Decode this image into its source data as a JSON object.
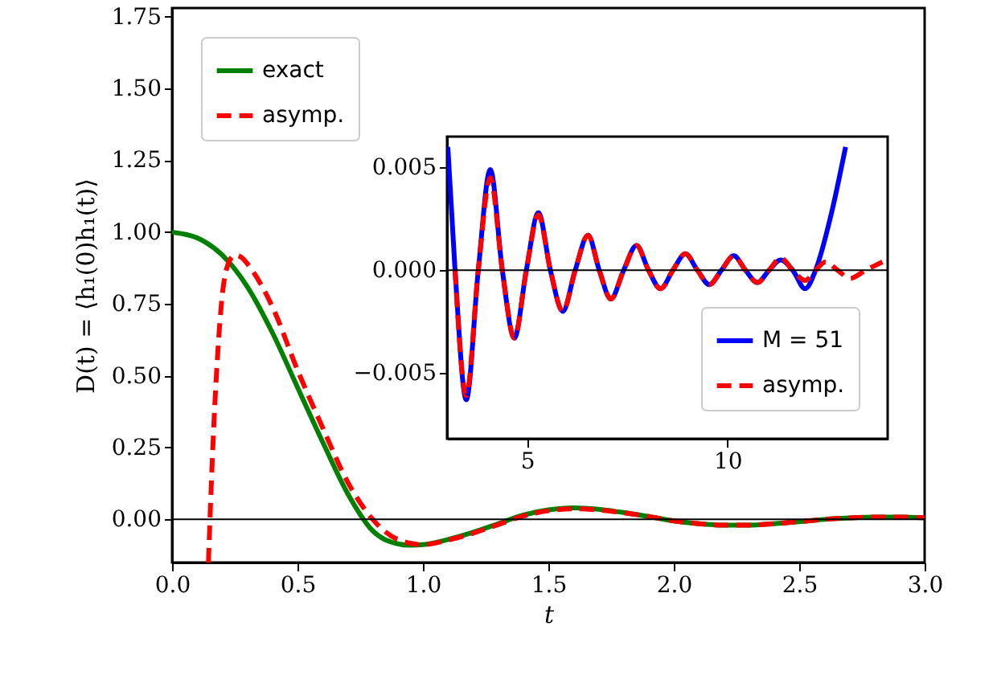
{
  "chart_data": [
    {
      "type": "line",
      "xlabel": "t",
      "ylabel": "D(t) = ⟨h₁(0)h₁(t)⟩",
      "legend": "top left",
      "xlim": [
        0,
        3
      ],
      "ylim": [
        -0.15,
        1.78
      ],
      "xticks": [
        {
          "value": 0,
          "label": "0.0"
        },
        {
          "value": 0.5,
          "label": "0.5"
        },
        {
          "value": 1,
          "label": "1.0"
        },
        {
          "value": 1.5,
          "label": "1.5"
        },
        {
          "value": 2,
          "label": "2.0"
        },
        {
          "value": 2.5,
          "label": "2.5"
        },
        {
          "value": 3,
          "label": "3.0"
        }
      ],
      "yticks": [
        {
          "value": 0,
          "label": "0.00"
        },
        {
          "value": 0.25,
          "label": "0.25"
        },
        {
          "value": 0.5,
          "label": "0.50"
        },
        {
          "value": 0.75,
          "label": "0.75"
        },
        {
          "value": 1,
          "label": "1.00"
        },
        {
          "value": 1.25,
          "label": "1.25"
        },
        {
          "value": 1.5,
          "label": "1.50"
        },
        {
          "value": 1.75,
          "label": "1.75"
        }
      ],
      "ref_lines": [
        {
          "axis": "y",
          "value": 0,
          "color": "#000000"
        }
      ],
      "series": [
        {
          "name": "exact",
          "color": "#008000",
          "line_style": "solid",
          "x": [
            0,
            0.1,
            0.2,
            0.3,
            0.4,
            0.5,
            0.6,
            0.7,
            0.8,
            0.9,
            0.95,
            1.0,
            1.1,
            1.2,
            1.3,
            1.4,
            1.5,
            1.6,
            1.7,
            1.8,
            1.9,
            2.0,
            2.1,
            2.2,
            2.3,
            2.4,
            2.5,
            2.6,
            2.7,
            2.8,
            2.9,
            3.0
          ],
          "values": [
            1.0,
            0.98,
            0.92,
            0.81,
            0.65,
            0.46,
            0.27,
            0.09,
            -0.04,
            -0.085,
            -0.09,
            -0.088,
            -0.07,
            -0.045,
            -0.015,
            0.015,
            0.033,
            0.04,
            0.035,
            0.024,
            0.01,
            -0.005,
            -0.015,
            -0.02,
            -0.02,
            -0.015,
            -0.008,
            0.0,
            0.005,
            0.008,
            0.008,
            0.006
          ]
        },
        {
          "name": "asymp.",
          "color": "#ff0000",
          "line_style": "dashed",
          "x": [
            0.145,
            0.16,
            0.18,
            0.2,
            0.22,
            0.25,
            0.28,
            0.3,
            0.4,
            0.5,
            0.6,
            0.7,
            0.8,
            0.9,
            1.0,
            1.1,
            1.2,
            1.3,
            1.4,
            1.5,
            1.6,
            1.7,
            1.8,
            1.9,
            2.0,
            2.1,
            2.2,
            2.3,
            2.4,
            2.5,
            2.6,
            2.7,
            2.8,
            2.9,
            3.0
          ],
          "values": [
            -0.15,
            0.2,
            0.55,
            0.78,
            0.88,
            0.92,
            0.91,
            0.89,
            0.74,
            0.52,
            0.32,
            0.13,
            0.0,
            -0.07,
            -0.088,
            -0.072,
            -0.048,
            -0.018,
            0.012,
            0.03,
            0.037,
            0.033,
            0.023,
            0.01,
            -0.005,
            -0.015,
            -0.02,
            -0.02,
            -0.015,
            -0.008,
            0.0,
            0.005,
            0.008,
            0.008,
            0.006
          ]
        }
      ]
    },
    {
      "type": "line",
      "legend": "bottom right",
      "xlim": [
        3,
        14
      ],
      "ylim": [
        -0.0082,
        0.0065
      ],
      "xticks": [
        5,
        10
      ],
      "yticks": [
        {
          "value": -0.005,
          "label": "−0.005"
        },
        {
          "value": 0,
          "label": "0.000"
        },
        {
          "value": 0.005,
          "label": "0.005"
        }
      ],
      "ref_lines": [
        {
          "axis": "y",
          "value": 0,
          "color": "#000000"
        }
      ],
      "series": [
        {
          "name": "M = 51",
          "color": "#0000ff",
          "line_style": "solid",
          "x": [
            3.02,
            3.2,
            3.48,
            3.78,
            4.08,
            4.38,
            4.68,
            4.98,
            5.28,
            5.58,
            5.89,
            6.2,
            6.52,
            6.8,
            7.09,
            7.41,
            7.73,
            8.03,
            8.33,
            8.64,
            8.95,
            9.25,
            9.55,
            9.85,
            10.16,
            10.45,
            10.75,
            11.04,
            11.33,
            11.63,
            11.94,
            12.2,
            12.6,
            12.95
          ],
          "values": [
            0.006,
            0.0,
            -0.0063,
            0.0,
            0.0049,
            0.0,
            -0.0033,
            0.0,
            0.0028,
            0.0,
            -0.002,
            0.0,
            0.0017,
            0.0,
            -0.0014,
            0.0,
            0.0012,
            0.0,
            -0.0009,
            0.0,
            0.0008,
            0.0,
            -0.0007,
            0.0,
            0.0007,
            0.0,
            -0.0006,
            0.0,
            0.0005,
            0.0,
            -0.0009,
            0.0,
            0.0028,
            0.006
          ]
        },
        {
          "name": "asymp.",
          "color": "#ff0000",
          "line_style": "dashed",
          "x": [
            3.2,
            3.48,
            3.78,
            4.08,
            4.38,
            4.68,
            4.98,
            5.28,
            5.58,
            5.89,
            6.2,
            6.52,
            6.8,
            7.09,
            7.41,
            7.73,
            8.03,
            8.33,
            8.64,
            8.95,
            9.25,
            9.55,
            9.85,
            10.16,
            10.45,
            10.75,
            11.04,
            11.33,
            11.63,
            11.94,
            12.2,
            12.45,
            12.75,
            13.06,
            13.45,
            13.87
          ],
          "values": [
            0.0,
            -0.0061,
            0.0,
            0.0045,
            0.0,
            -0.0033,
            0.0,
            0.0027,
            0.0,
            -0.002,
            0.0,
            0.0017,
            0.0,
            -0.0014,
            0.0,
            0.0012,
            0.0,
            -0.0009,
            0.0,
            0.0008,
            0.0,
            -0.0007,
            0.0,
            0.0007,
            0.0,
            -0.0006,
            0.0,
            0.0006,
            0.0,
            -0.0005,
            0.0,
            0.0004,
            0.0,
            -0.0004,
            0.0,
            0.0004
          ]
        }
      ]
    }
  ]
}
